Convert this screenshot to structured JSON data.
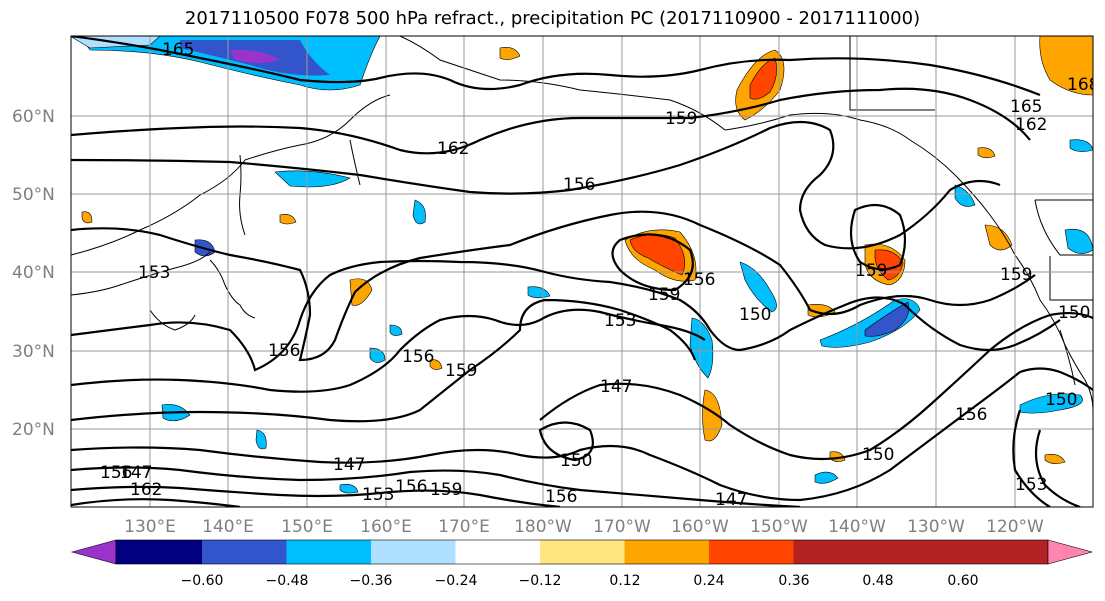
{
  "title": "2017110500 F078 500 hPa refract., precipitation PC (2017110900 - 2017111000)",
  "map": {
    "lat_ticks": [
      "60°N",
      "50°N",
      "40°N",
      "30°N",
      "20°N"
    ],
    "lon_ticks": [
      "130°E",
      "140°E",
      "150°E",
      "160°E",
      "170°E",
      "180°W",
      "170°W",
      "160°W",
      "150°W",
      "140°W",
      "130°W",
      "120°W"
    ],
    "contour_labels": [
      "165",
      "162",
      "159",
      "156",
      "153",
      "150",
      "147",
      "168",
      "165",
      "162",
      "159",
      "156",
      "159",
      "156",
      "153",
      "150",
      "159",
      "156",
      "159",
      "147",
      "150",
      "156",
      "159",
      "156",
      "153",
      "156",
      "162",
      "147",
      "150",
      "156",
      "153",
      "150",
      "147",
      "159",
      "153",
      "147",
      "162",
      "159",
      "150"
    ]
  },
  "colorbar": {
    "labels": [
      "−0.60",
      "−0.48",
      "−0.36",
      "−0.24",
      "−0.12",
      "0.12",
      "0.24",
      "0.36",
      "0.48",
      "0.60"
    ],
    "colors": [
      "#9933cc",
      "#000080",
      "#3355cc",
      "#00bfff",
      "#b0e0ff",
      "#ffffff",
      "#ffe680",
      "#ffa500",
      "#ff4500",
      "#b22222",
      "#ff85b0"
    ]
  }
}
